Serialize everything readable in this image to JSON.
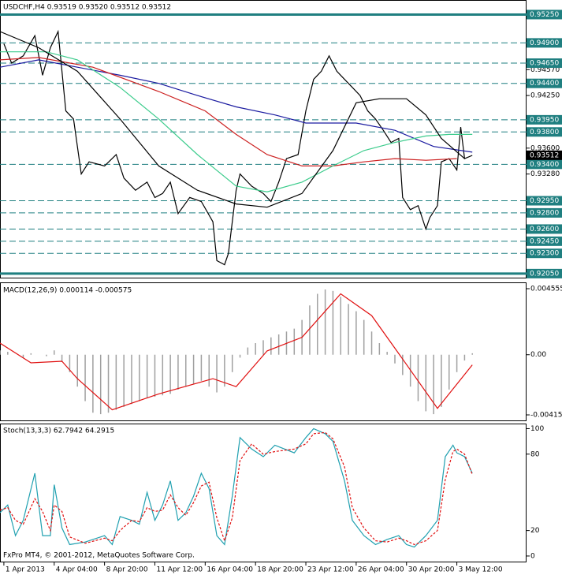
{
  "chart_data": [
    {
      "type": "line",
      "title": "USDCHF,H4  0.93519 0.93520 0.93512 0.93512",
      "xlim": [
        0,
        136
      ],
      "ylim": [
        0.92,
        0.9543
      ],
      "yticks": [
        {
          "value": 0.9457,
          "label": "0.94570"
        },
        {
          "value": 0.9425,
          "label": "0.94250"
        },
        {
          "value": 0.936,
          "label": "0.93600"
        },
        {
          "value": 0.9328,
          "label": "0.93280"
        }
      ],
      "levels": [
        {
          "value": 0.9525,
          "label": "0.95250",
          "solid": true
        },
        {
          "value": 0.949,
          "label": "0.94900"
        },
        {
          "value": 0.9465,
          "label": "0.94650"
        },
        {
          "value": 0.944,
          "label": "0.94400"
        },
        {
          "value": 0.9395,
          "label": "0.93950"
        },
        {
          "value": 0.938,
          "label": "0.93800"
        },
        {
          "value": 0.934,
          "label": "0.93400"
        },
        {
          "value": 0.9295,
          "label": "0.92950"
        },
        {
          "value": 0.928,
          "label": "0.92800"
        },
        {
          "value": 0.926,
          "label": "0.92600"
        },
        {
          "value": 0.9245,
          "label": "0.92450"
        },
        {
          "value": 0.923,
          "label": "0.92300"
        },
        {
          "value": 0.9205,
          "label": "0.92050",
          "solid": true
        }
      ],
      "level_color": "#1f7f80",
      "last_price": {
        "value": 0.93512,
        "label": "0.93512"
      },
      "series": [
        {
          "color": "#000000",
          "x": [
            1,
            3,
            6,
            9,
            11,
            13,
            15,
            17,
            19,
            21,
            23,
            27,
            30,
            32,
            35,
            38,
            40,
            42,
            44,
            46,
            49,
            52,
            55,
            56,
            58,
            59,
            61,
            62,
            65,
            68,
            70,
            72,
            74,
            77,
            79,
            81,
            83,
            85,
            87,
            89,
            91,
            93,
            95,
            97,
            99,
            101,
            103,
            104,
            106,
            108,
            110,
            111,
            113,
            114,
            116,
            118,
            119,
            120,
            122
          ],
          "values": [
            0.9489,
            0.9465,
            0.9474,
            0.9499,
            0.945,
            0.9484,
            0.9504,
            0.9406,
            0.9396,
            0.9328,
            0.9343,
            0.9338,
            0.9352,
            0.9323,
            0.9308,
            0.9318,
            0.9299,
            0.9304,
            0.9318,
            0.9279,
            0.9299,
            0.9294,
            0.9269,
            0.9221,
            0.9216,
            0.923,
            0.9308,
            0.9328,
            0.9313,
            0.9304,
            0.9294,
            0.9318,
            0.9347,
            0.9352,
            0.9406,
            0.9445,
            0.9455,
            0.9474,
            0.9455,
            0.9445,
            0.9435,
            0.9425,
            0.9406,
            0.9396,
            0.9382,
            0.9367,
            0.9372,
            0.9299,
            0.9284,
            0.9289,
            0.926,
            0.9274,
            0.9289,
            0.9343,
            0.9347,
            0.9333,
            0.9386,
            0.9347,
            0.9351
          ]
        },
        {
          "color": "#1a1aa0",
          "x": [
            0,
            10,
            20,
            31,
            41,
            51,
            61,
            71,
            79,
            92,
            102,
            112,
            122
          ],
          "values": [
            0.946,
            0.9469,
            0.946,
            0.945,
            0.944,
            0.9425,
            0.9411,
            0.9401,
            0.9391,
            0.9391,
            0.9382,
            0.9362,
            0.9355
          ]
        },
        {
          "color": "#cc2020",
          "x": [
            0,
            10,
            24,
            41,
            53,
            61,
            69,
            78,
            86,
            94,
            102,
            110,
            118
          ],
          "values": [
            0.9469,
            0.9472,
            0.946,
            0.943,
            0.9406,
            0.9377,
            0.9352,
            0.9338,
            0.9338,
            0.9343,
            0.9347,
            0.9345,
            0.9347
          ]
        },
        {
          "color": "#3ccc8c",
          "x": [
            0,
            12,
            20,
            31,
            41,
            51,
            61,
            69,
            78,
            86,
            94,
            102,
            110,
            116,
            122
          ],
          "values": [
            0.9479,
            0.9479,
            0.9469,
            0.9435,
            0.9396,
            0.9352,
            0.9313,
            0.9306,
            0.9318,
            0.9338,
            0.9357,
            0.9367,
            0.9375,
            0.9377,
            0.9377
          ]
        },
        {
          "color": "#000000",
          "x": [
            0,
            10,
            20,
            31,
            41,
            51,
            61,
            69,
            78,
            86,
            92,
            98,
            105,
            110,
            114,
            120
          ],
          "values": [
            0.9504,
            0.9484,
            0.9455,
            0.9396,
            0.9338,
            0.9308,
            0.9291,
            0.9287,
            0.9304,
            0.9357,
            0.9416,
            0.9421,
            0.9421,
            0.9401,
            0.9372,
            0.9347
          ]
        }
      ]
    },
    {
      "type": "line",
      "title": "MACD(12,26,9) 0.000114 -0.000575",
      "xlim": [
        0,
        136
      ],
      "ylim": [
        -0.00453,
        0.00499
      ],
      "yticks": [
        0.004555,
        {
          "value": 0,
          "label": "0.00"
        },
        -0.00415
      ],
      "series": [
        {
          "color": "#a0a0a0",
          "kind": "histogram",
          "x": [
            0,
            2,
            4,
            6,
            8,
            10,
            12,
            14,
            16,
            18,
            20,
            22,
            24,
            26,
            28,
            30,
            32,
            34,
            36,
            38,
            40,
            42,
            44,
            46,
            48,
            50,
            52,
            54,
            56,
            58,
            60,
            62,
            64,
            66,
            68,
            70,
            72,
            74,
            76,
            78,
            80,
            82,
            84,
            86,
            88,
            90,
            92,
            94,
            96,
            98,
            100,
            102,
            104,
            106,
            108,
            110,
            112,
            114,
            116,
            118,
            120,
            122
          ],
          "values": [
            0.0003,
            0.0002,
            0,
            -0.0002,
            0.0001,
            0,
            -0.0001,
            0.0003,
            -0.0005,
            -0.0012,
            -0.0022,
            -0.0032,
            -0.004,
            -0.0041,
            -0.004,
            -0.0038,
            -0.0036,
            -0.0034,
            -0.0032,
            -0.003,
            -0.0029,
            -0.0028,
            -0.0027,
            -0.0024,
            -0.0022,
            -0.002,
            -0.0018,
            -0.0022,
            -0.0026,
            -0.0022,
            -0.0012,
            -0.0002,
            0.0005,
            0.0008,
            0.001,
            0.0012,
            0.0014,
            0.0016,
            0.0018,
            0.0024,
            0.0034,
            0.0042,
            0.0045,
            0.0044,
            0.004,
            0.0035,
            0.003,
            0.0024,
            0.0016,
            0.0008,
            0.0002,
            -0.0006,
            -0.0014,
            -0.0022,
            -0.0032,
            -0.0039,
            -0.0041,
            -0.0036,
            -0.0024,
            -0.0012,
            -0.0004,
            0.0001
          ]
        },
        {
          "color": "#e01010",
          "x": [
            0,
            8,
            16,
            20,
            29,
            41,
            55,
            61,
            69,
            78,
            88,
            96,
            104,
            113,
            122
          ],
          "values": [
            0.0008,
            -0.00056,
            -0.00045,
            -0.00165,
            -0.0038,
            -0.0027,
            -0.00165,
            -0.0022,
            0.00026,
            0.0012,
            0.0042,
            0.0027,
            -0.0003,
            -0.0037,
            -0.0007
          ]
        }
      ]
    },
    {
      "type": "line",
      "title": "Stoch(13,3,3) 62.7942 64.2915",
      "footer": "FxPro MT4, © 2001-2012, MetaQuotes Software Corp.",
      "xlim": [
        0,
        136
      ],
      "ylim": [
        -5,
        104
      ],
      "yticks": [
        100,
        80,
        20,
        0
      ],
      "xticks": [
        {
          "value": 1,
          "label": "1 Apr 2013"
        },
        {
          "value": 14,
          "label": "4 Apr 04:00"
        },
        {
          "value": 27,
          "label": "8 Apr 20:00"
        },
        {
          "value": 40,
          "label": "11 Apr 12:00"
        },
        {
          "value": 53,
          "label": "16 Apr 04:00"
        },
        {
          "value": 66,
          "label": "18 Apr 20:00"
        },
        {
          "value": 79,
          "label": "23 Apr 12:00"
        },
        {
          "value": 92,
          "label": "26 Apr 04:00"
        },
        {
          "value": 105,
          "label": "30 Apr 20:00"
        },
        {
          "value": 118,
          "label": "3 May 12:00"
        }
      ],
      "series": [
        {
          "color": "#20a0b0",
          "x": [
            0,
            2,
            4,
            6,
            9,
            11,
            13,
            14,
            16,
            18,
            22,
            27,
            29,
            31,
            34,
            36,
            38,
            40,
            42,
            44,
            46,
            48,
            50,
            52,
            54,
            56,
            58,
            60,
            62,
            65,
            68,
            71,
            76,
            79,
            81,
            84,
            86,
            89,
            91,
            94,
            97,
            100,
            103,
            105,
            107,
            110,
            113,
            115,
            117,
            118,
            120,
            122
          ],
          "values": [
            34,
            40,
            16,
            28,
            65,
            16,
            16,
            56,
            22,
            9,
            11,
            16,
            9,
            31,
            28,
            25,
            50,
            28,
            40,
            59,
            28,
            34,
            47,
            65,
            53,
            16,
            9,
            47,
            93,
            84,
            78,
            87,
            81,
            93,
            100,
            96,
            90,
            59,
            28,
            16,
            9,
            13,
            16,
            9,
            7,
            16,
            28,
            78,
            87,
            81,
            78,
            65
          ]
        },
        {
          "color": "#e01010",
          "dash": true,
          "x": [
            0,
            2,
            4,
            6,
            9,
            11,
            13,
            14,
            16,
            18,
            22,
            27,
            29,
            31,
            34,
            36,
            38,
            40,
            42,
            44,
            46,
            48,
            50,
            52,
            54,
            56,
            58,
            60,
            62,
            65,
            68,
            71,
            76,
            79,
            81,
            84,
            86,
            89,
            91,
            94,
            97,
            100,
            103,
            105,
            107,
            110,
            113,
            115,
            117,
            118,
            120,
            122
          ],
          "values": [
            36,
            38,
            28,
            25,
            45,
            35,
            20,
            40,
            35,
            15,
            10,
            14,
            12,
            20,
            28,
            27,
            38,
            35,
            36,
            48,
            38,
            32,
            42,
            55,
            58,
            30,
            12,
            30,
            75,
            88,
            80,
            82,
            84,
            88,
            96,
            97,
            92,
            70,
            38,
            22,
            12,
            11,
            14,
            12,
            9,
            12,
            20,
            60,
            82,
            84,
            80,
            64
          ]
        }
      ]
    }
  ]
}
